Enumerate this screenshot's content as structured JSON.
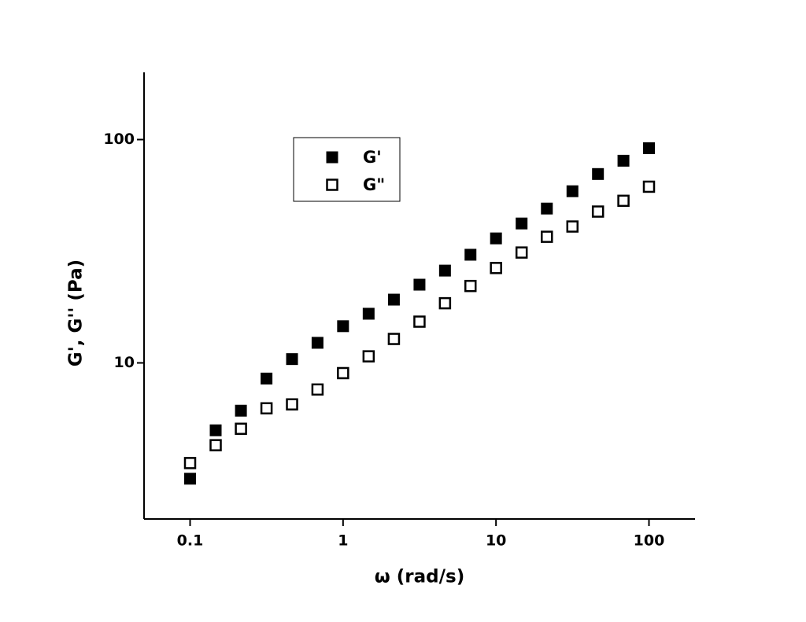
{
  "chart_data": {
    "type": "scatter",
    "x_label": "ω (rad/s)",
    "y_label": "G', G'' (Pa)",
    "x": [
      0.1,
      0.147,
      0.215,
      0.316,
      0.464,
      0.681,
      1,
      1.47,
      2.15,
      3.16,
      4.64,
      6.81,
      10,
      14.7,
      21.5,
      31.6,
      46.4,
      68.1,
      100
    ],
    "series": [
      {
        "name": "G'",
        "color": "#000000",
        "filled": true,
        "values": [
          3.03,
          4.99,
          6.11,
          8.51,
          10.4,
          12.3,
          14.6,
          16.6,
          19.2,
          22.4,
          25.9,
          30.5,
          36.1,
          42.1,
          49.1,
          58.7,
          70.1,
          80.4,
          91.5
        ]
      },
      {
        "name": "G\"",
        "color": "#000000",
        "filled": false,
        "values": [
          3.56,
          4.28,
          5.07,
          6.26,
          6.52,
          7.6,
          9.0,
          10.7,
          12.8,
          15.3,
          18.5,
          22.1,
          26.6,
          31.2,
          36.7,
          40.8,
          47.6,
          53.2,
          61.5
        ]
      }
    ],
    "xlim": [
      0.05,
      200
    ],
    "ylim": [
      2,
      200
    ],
    "xscale": "log",
    "yscale": "log",
    "xticks": [
      0.1,
      1,
      10,
      100
    ],
    "yticks": [
      10,
      100
    ],
    "grid": false,
    "legend": "upper left"
  }
}
